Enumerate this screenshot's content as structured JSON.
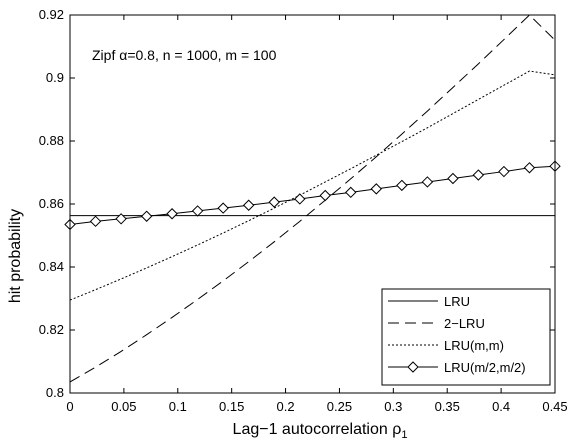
{
  "chart_data": {
    "type": "line",
    "title": "",
    "annotation": "Zipf α=0.8, n = 1000, m = 100",
    "xlabel": "Lag−1 autocorrelation ρ",
    "xlabel_subscript": "1",
    "ylabel": "hit probability",
    "xlim": [
      0,
      0.45
    ],
    "ylim": [
      0.8,
      0.92
    ],
    "x_ticks": [
      0,
      0.05,
      0.1,
      0.15,
      0.2,
      0.25,
      0.3,
      0.35,
      0.4,
      0.45
    ],
    "x_tick_labels": [
      "0",
      "0.05",
      "0.1",
      "0.15",
      "0.2",
      "0.25",
      "0.3",
      "0.35",
      "0.4",
      "0.45"
    ],
    "y_ticks": [
      0.8,
      0.82,
      0.84,
      0.86,
      0.88,
      0.9,
      0.92
    ],
    "y_tick_labels": [
      "0.8",
      "0.82",
      "0.84",
      "0.86",
      "0.88",
      "0.9",
      "0.92"
    ],
    "grid": false,
    "legend_position": "bottom-right",
    "x": [
      0,
      0.0237,
      0.0474,
      0.0711,
      0.0947,
      0.1184,
      0.1421,
      0.1658,
      0.1895,
      0.2132,
      0.2368,
      0.2605,
      0.2842,
      0.3079,
      0.3316,
      0.3553,
      0.3789,
      0.4026,
      0.4263,
      0.45
    ],
    "series": [
      {
        "name": "LRU",
        "line_style": "solid",
        "marker": "none",
        "values": [
          0.8563,
          0.8563,
          0.8563,
          0.8563,
          0.8563,
          0.8563,
          0.8563,
          0.8563,
          0.8563,
          0.8563,
          0.8563,
          0.8563,
          0.8563,
          0.8563,
          0.8563,
          0.8563,
          0.8563,
          0.8563,
          0.8563,
          0.8563
        ]
      },
      {
        "name": "2−LRU",
        "line_style": "dashed",
        "marker": "none",
        "values": [
          0.8035,
          0.8082,
          0.8132,
          0.8185,
          0.824,
          0.8297,
          0.8356,
          0.8417,
          0.848,
          0.8545,
          0.8612,
          0.868,
          0.875,
          0.8822,
          0.8895,
          0.897,
          0.9045,
          0.9122,
          0.92,
          0.912
        ]
      },
      {
        "name": "LRU(m,m)",
        "line_style": "dotted",
        "marker": "none",
        "values": [
          0.8295,
          0.8328,
          0.8362,
          0.8397,
          0.8433,
          0.847,
          0.8508,
          0.8547,
          0.8587,
          0.8628,
          0.867,
          0.8712,
          0.8755,
          0.8798,
          0.8842,
          0.8887,
          0.8932,
          0.8977,
          0.9022,
          0.901
        ]
      },
      {
        "name": "LRU(m/2,m/2)",
        "line_style": "solid",
        "marker": "diamond",
        "values": [
          0.8535,
          0.8545,
          0.8553,
          0.8561,
          0.8569,
          0.8578,
          0.8587,
          0.8596,
          0.8606,
          0.8616,
          0.8627,
          0.8637,
          0.8648,
          0.8659,
          0.867,
          0.8681,
          0.8692,
          0.8703,
          0.8715,
          0.872
        ]
      }
    ]
  }
}
